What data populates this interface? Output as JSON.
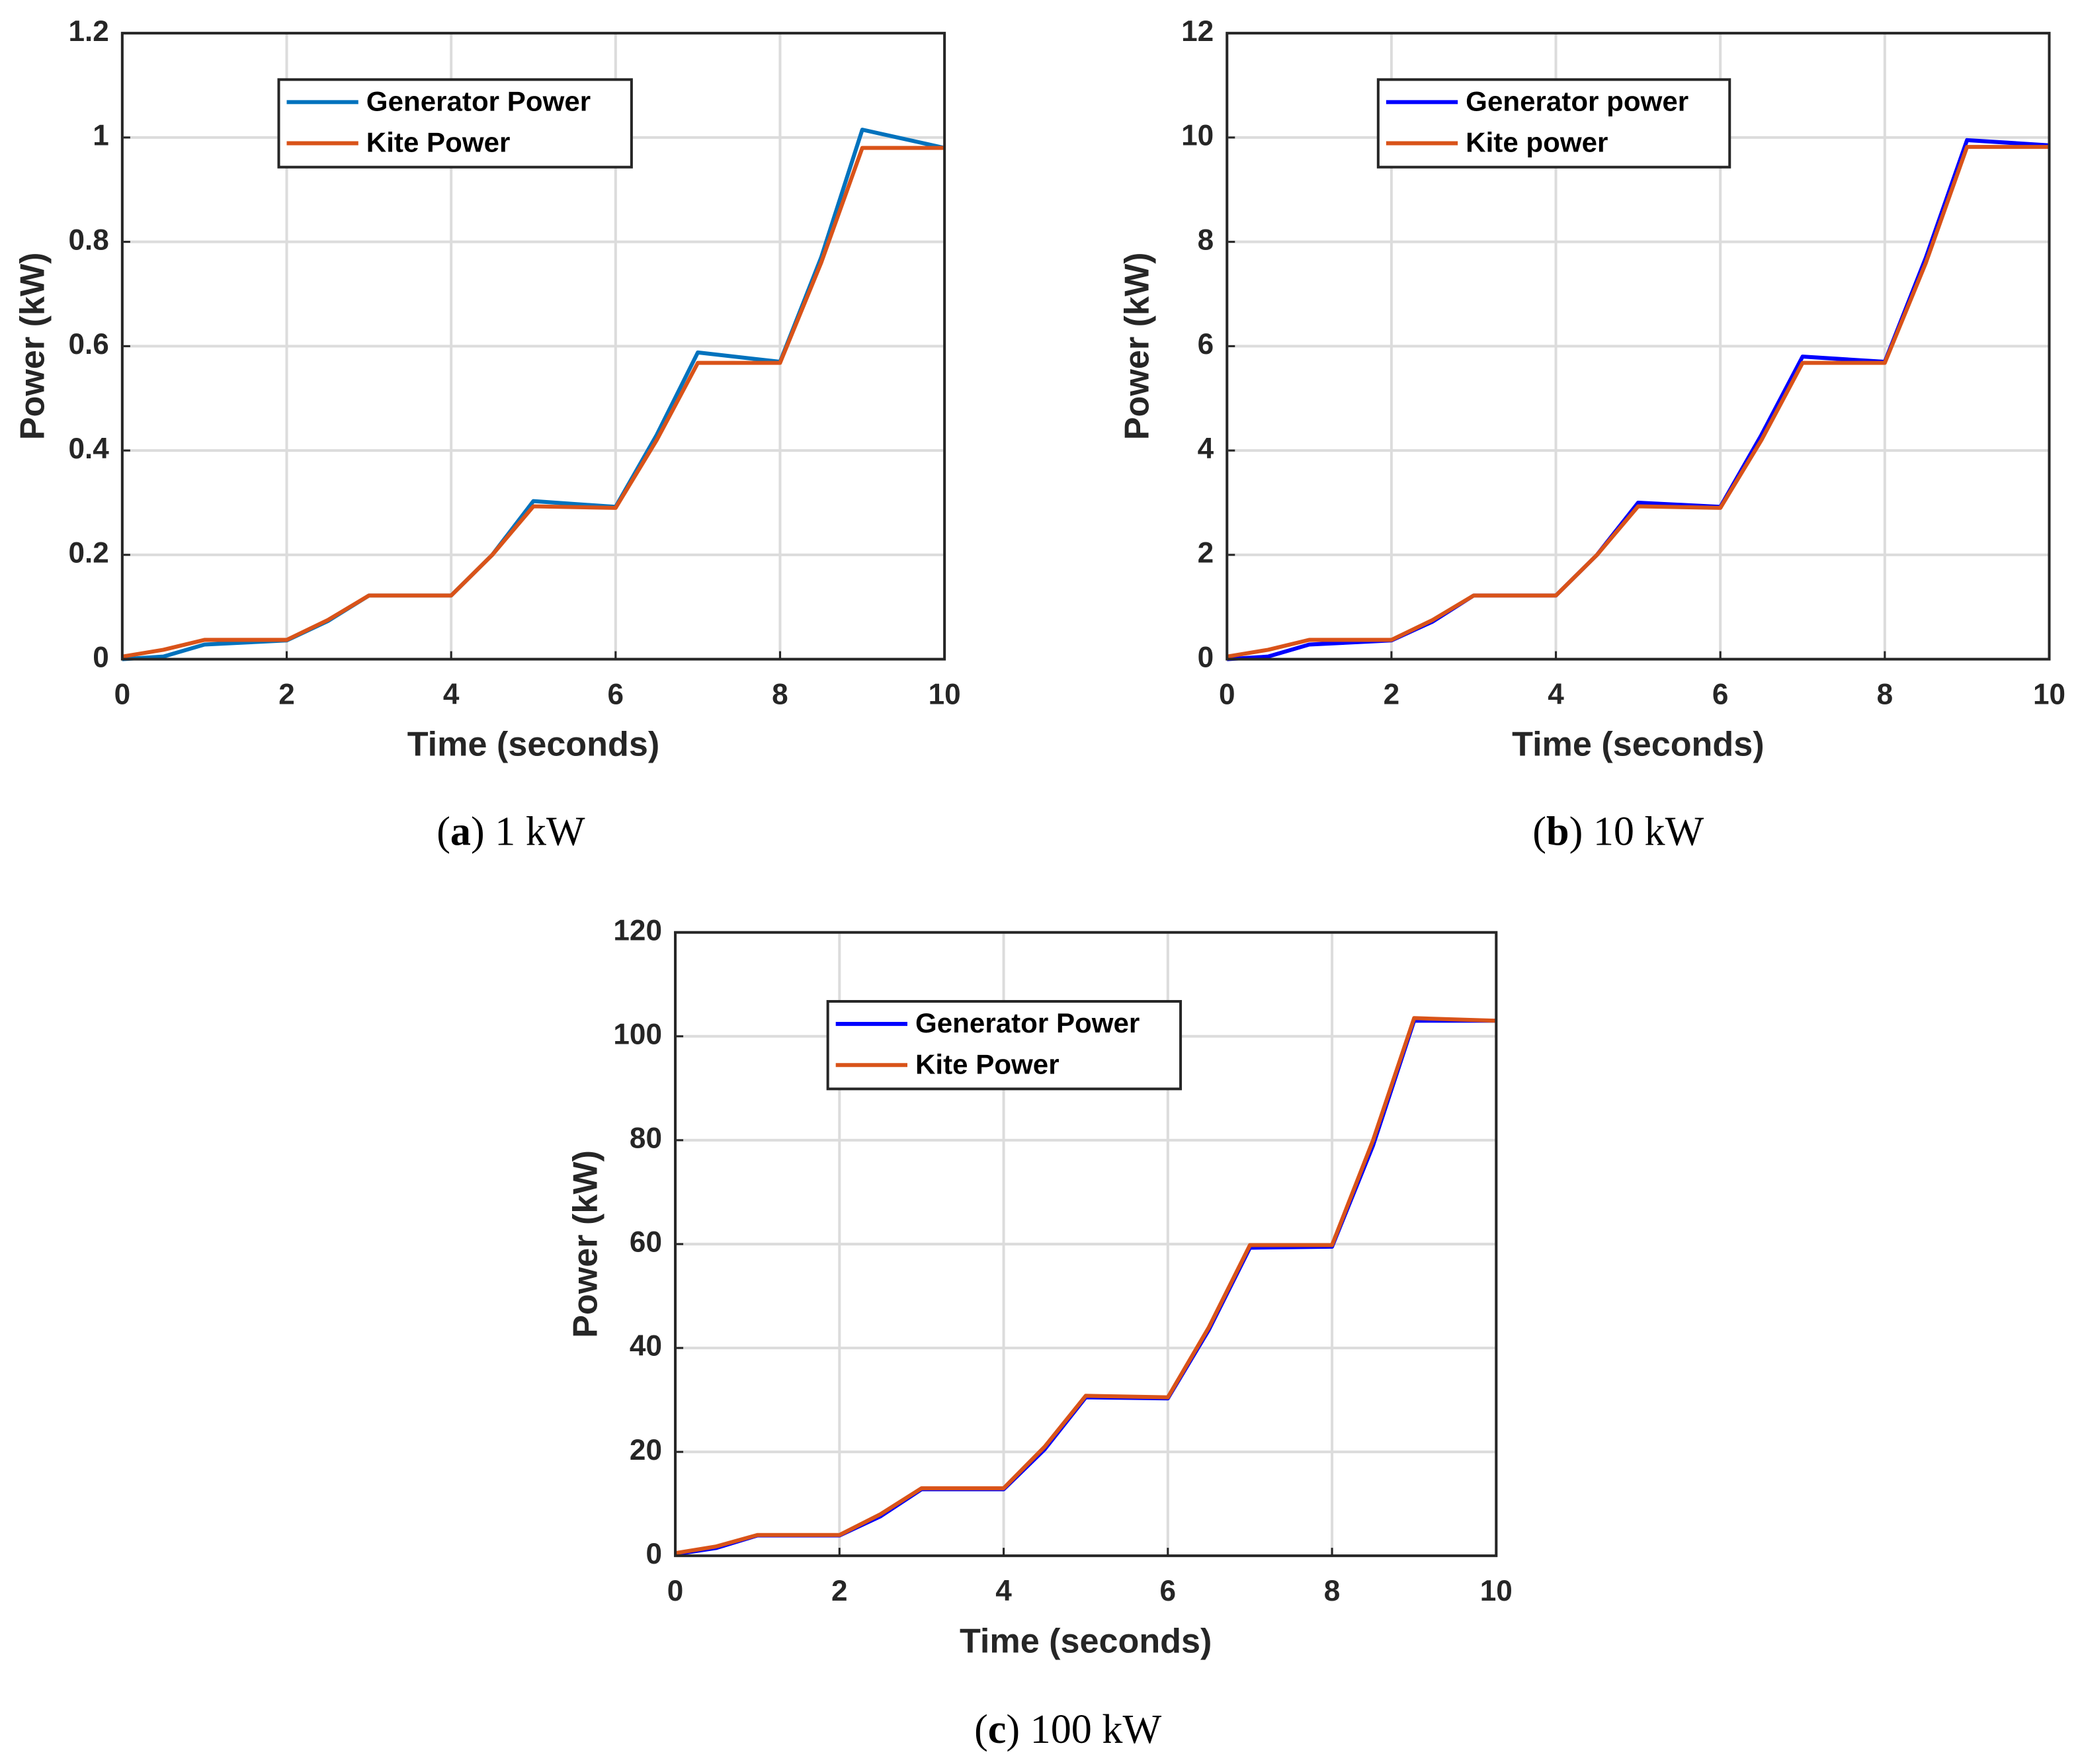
{
  "chart_data": [
    {
      "type": "line",
      "caption": "(a) 1 kW",
      "xlabel": "Time (seconds)",
      "ylabel": "Power (kW)",
      "x": [
        0,
        0.5,
        1,
        2,
        2.5,
        3,
        4,
        4.5,
        5,
        6,
        6.5,
        7,
        8,
        8.5,
        9,
        10
      ],
      "series": [
        {
          "name": "Generator Power",
          "color": "#0072bd",
          "values": [
            0,
            0.005,
            0.028,
            0.036,
            0.073,
            0.122,
            0.122,
            0.2,
            0.303,
            0.292,
            0.43,
            0.588,
            0.57,
            0.77,
            1.015,
            0.98
          ]
        },
        {
          "name": "Kite Power",
          "color": "#d95319",
          "values": [
            0.005,
            0.018,
            0.037,
            0.037,
            0.075,
            0.122,
            0.122,
            0.2,
            0.293,
            0.29,
            0.42,
            0.568,
            0.568,
            0.76,
            0.98,
            0.98
          ]
        }
      ],
      "xlim": [
        0,
        10
      ],
      "xticks": [
        0,
        2,
        4,
        6,
        8,
        10
      ],
      "ylim": [
        0,
        1.2
      ],
      "yticks": [
        0,
        0.2,
        0.4,
        0.6,
        0.8,
        1,
        1.2
      ],
      "grid": true,
      "legend": "upper left"
    },
    {
      "type": "line",
      "caption": "(b) 10 kW",
      "xlabel": "Time (seconds)",
      "ylabel": "Power (kW)",
      "x": [
        0,
        0.5,
        1,
        2,
        2.5,
        3,
        4,
        4.5,
        5,
        6,
        6.5,
        7,
        8,
        8.5,
        9,
        10
      ],
      "series": [
        {
          "name": "Generator power",
          "color": "#0000ff",
          "values": [
            0,
            0.05,
            0.28,
            0.36,
            0.72,
            1.22,
            1.22,
            2.0,
            3.0,
            2.92,
            4.3,
            5.8,
            5.7,
            7.7,
            9.95,
            9.85
          ]
        },
        {
          "name": "Kite power",
          "color": "#d95319",
          "values": [
            0.05,
            0.18,
            0.37,
            0.37,
            0.75,
            1.22,
            1.22,
            2.0,
            2.93,
            2.9,
            4.2,
            5.68,
            5.68,
            7.6,
            9.82,
            9.82
          ]
        }
      ],
      "xlim": [
        0,
        10
      ],
      "xticks": [
        0,
        2,
        4,
        6,
        8,
        10
      ],
      "ylim": [
        0,
        12
      ],
      "yticks": [
        0,
        2,
        4,
        6,
        8,
        10,
        12
      ],
      "grid": true,
      "legend": "upper left"
    },
    {
      "type": "line",
      "caption": "(c) 100 kW",
      "xlabel": "Time (seconds)",
      "ylabel": "Power (kW)",
      "x": [
        0,
        0.5,
        1,
        2,
        2.5,
        3,
        4,
        4.5,
        5,
        6,
        6.5,
        7,
        8,
        8.5,
        9,
        10
      ],
      "series": [
        {
          "name": "Generator Power",
          "color": "#0000ff",
          "values": [
            0.3,
            1.5,
            3.9,
            3.9,
            7.6,
            12.8,
            12.8,
            20.5,
            30.5,
            30.3,
            43.5,
            59.3,
            59.5,
            79,
            103,
            103
          ]
        },
        {
          "name": "Kite Power",
          "color": "#d95319",
          "values": [
            0.5,
            1.8,
            4.0,
            4.0,
            8,
            13,
            13,
            21,
            30.8,
            30.5,
            44,
            59.8,
            59.8,
            80,
            103.5,
            103
          ]
        }
      ],
      "xlim": [
        0,
        10
      ],
      "xticks": [
        0,
        2,
        4,
        6,
        8,
        10
      ],
      "ylim": [
        0,
        120
      ],
      "yticks": [
        0,
        20,
        40,
        60,
        80,
        100,
        120
      ],
      "grid": true,
      "legend": "upper left"
    }
  ]
}
